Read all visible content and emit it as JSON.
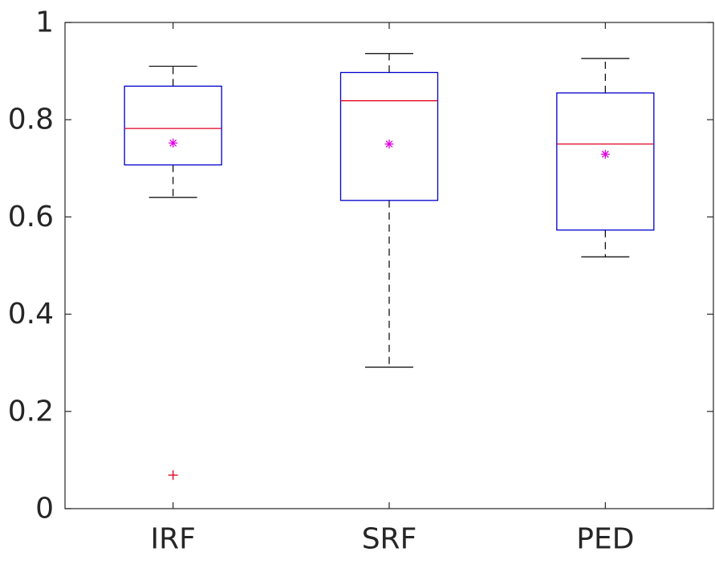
{
  "chart_data": {
    "type": "box",
    "title": "",
    "xlabel": "",
    "ylabel": "",
    "ylim": [
      0,
      1
    ],
    "yticks": [
      0,
      0.2,
      0.4,
      0.6,
      0.8,
      1
    ],
    "ytick_labels": [
      "0",
      "0.2",
      "0.4",
      "0.6",
      "0.8",
      "1"
    ],
    "grid": false,
    "legend": "none",
    "categories": [
      "IRF",
      "SRF",
      "PED"
    ],
    "boxes": [
      {
        "q1": 0.707,
        "median": 0.782,
        "q3": 0.869,
        "whisker_low": 0.64,
        "whisker_high": 0.91,
        "mean": 0.752,
        "outliers": [
          0.069
        ]
      },
      {
        "q1": 0.634,
        "median": 0.839,
        "q3": 0.897,
        "whisker_low": 0.291,
        "whisker_high": 0.936,
        "mean": 0.75,
        "outliers": []
      },
      {
        "q1": 0.573,
        "median": 0.75,
        "q3": 0.855,
        "whisker_low": 0.518,
        "whisker_high": 0.926,
        "mean": 0.729,
        "outliers": []
      }
    ],
    "colors": {
      "box": "#0000cc",
      "median": "#e0001b",
      "whisker": "#000000",
      "mean_marker": "#e000e0",
      "outlier": "#e0001b",
      "axis": "#262626"
    }
  }
}
